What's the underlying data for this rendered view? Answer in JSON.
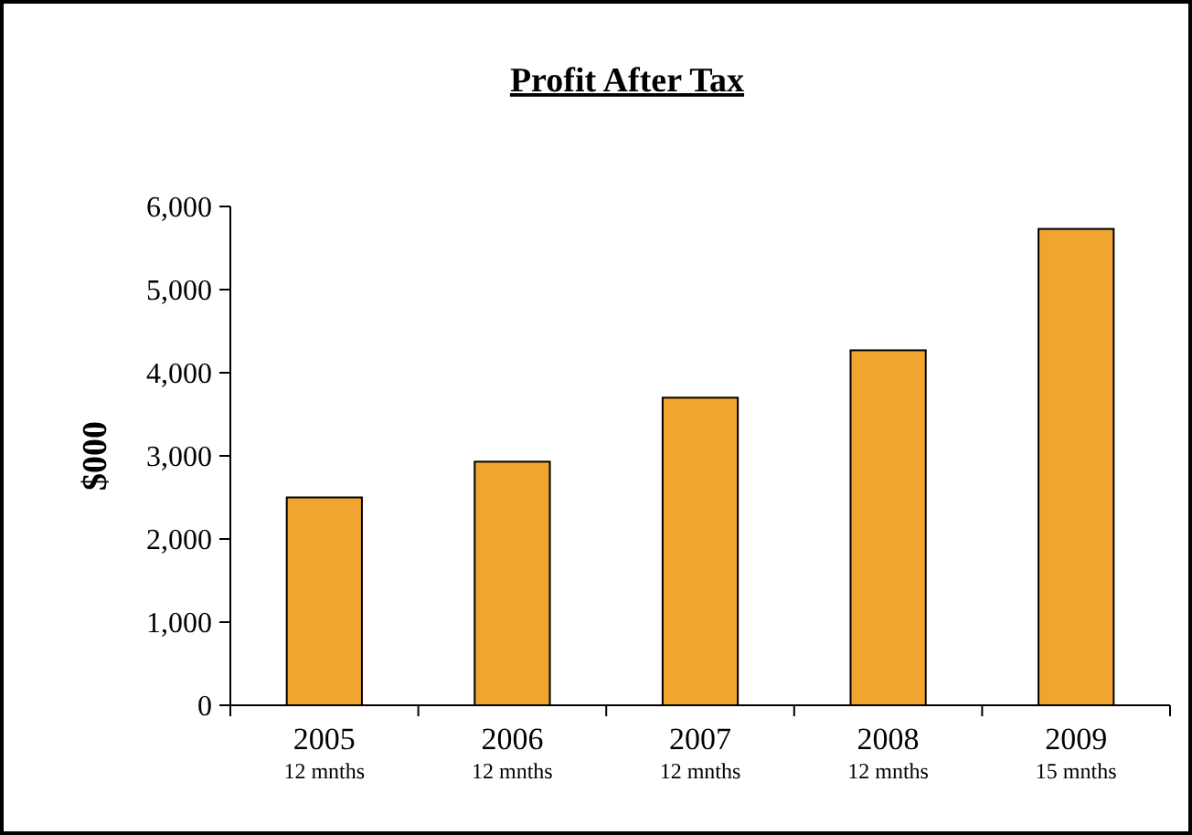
{
  "chart_data": {
    "type": "bar",
    "title": "Profit After Tax",
    "ylabel": "$000",
    "categories": [
      "2005\n12 mnths",
      "2006\n12 mnths",
      "2007\n12 mnths",
      "2008\n12 mnths",
      "2009\n15 mnths"
    ],
    "values": [
      2500,
      2930,
      3700,
      4270,
      5730
    ],
    "color": "#f0a530",
    "ylim": [
      0,
      6000
    ],
    "yticks": [
      {
        "value": 0,
        "label": "0"
      },
      {
        "value": 1000,
        "label": "1,000"
      },
      {
        "value": 2000,
        "label": "2,000"
      },
      {
        "value": 3000,
        "label": "3,000"
      },
      {
        "value": 4000,
        "label": "4,000"
      },
      {
        "value": 5000,
        "label": "5,000"
      },
      {
        "value": 6000,
        "label": "6,000"
      }
    ],
    "grid": false
  }
}
